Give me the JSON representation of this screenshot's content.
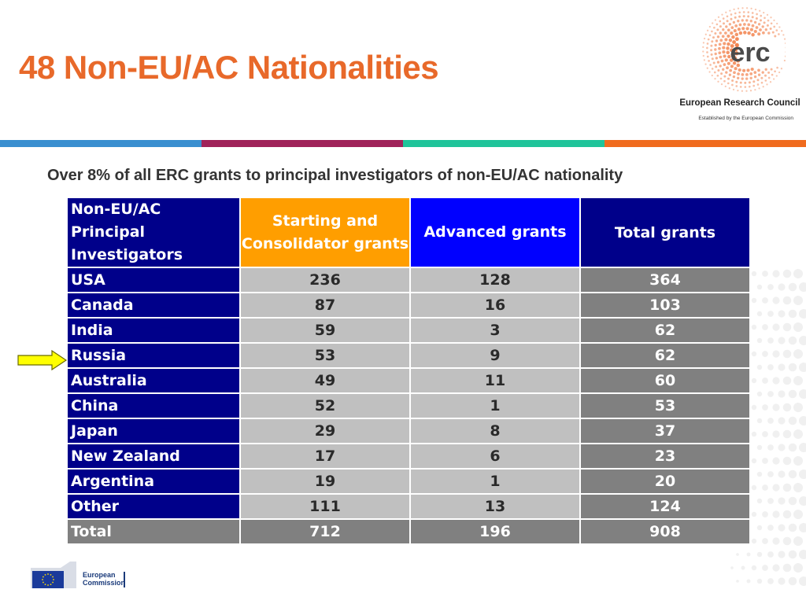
{
  "slide": {
    "title": "48 Non-EU/AC Nationalities",
    "subtitle": "Over 8% of all ERC grants to principal investigators of non-EU/AC nationality"
  },
  "logo": {
    "mark_text": "erc",
    "name": "European Research Council",
    "tagline": "Established by the European Commission"
  },
  "footer": {
    "ec_line1": "European",
    "ec_line2": "Commission"
  },
  "table": {
    "headers": {
      "label": "Non-EU/AC Principal Investigators",
      "starting": "Starting and Consolidator grants",
      "advanced": "Advanced grants",
      "total": "Total grants"
    },
    "rows": [
      {
        "country": "USA",
        "starting": "236",
        "advanced": "128",
        "total": "364"
      },
      {
        "country": "Canada",
        "starting": "87",
        "advanced": "16",
        "total": "103"
      },
      {
        "country": "India",
        "starting": "59",
        "advanced": "3",
        "total": "62"
      },
      {
        "country": "Russia",
        "starting": "53",
        "advanced": "9",
        "total": "62"
      },
      {
        "country": "Australia",
        "starting": "49",
        "advanced": "11",
        "total": "60"
      },
      {
        "country": "China",
        "starting": "52",
        "advanced": "1",
        "total": "53"
      },
      {
        "country": "Japan",
        "starting": "29",
        "advanced": "8",
        "total": "37"
      },
      {
        "country": "New Zealand",
        "starting": "17",
        "advanced": "6",
        "total": "23"
      },
      {
        "country": "Argentina",
        "starting": "19",
        "advanced": "1",
        "total": "20"
      },
      {
        "country": "Other",
        "starting": "111",
        "advanced": "13",
        "total": "124"
      }
    ],
    "totals": {
      "label": "Total",
      "starting": "712",
      "advanced": "196",
      "total": "908"
    }
  },
  "highlight": {
    "arrow_icon": "yellow-arrow-right-icon",
    "target_country": "Russia"
  },
  "colors": {
    "title_orange": "#e8692a",
    "header_navy": "#00008a",
    "header_orange": "#ff9e00",
    "header_blue": "#0000ff",
    "stripe": [
      "#3a8fd0",
      "#a0235a",
      "#1fc49a",
      "#f06b1e"
    ],
    "arrow_yellow": "#ffff00"
  }
}
